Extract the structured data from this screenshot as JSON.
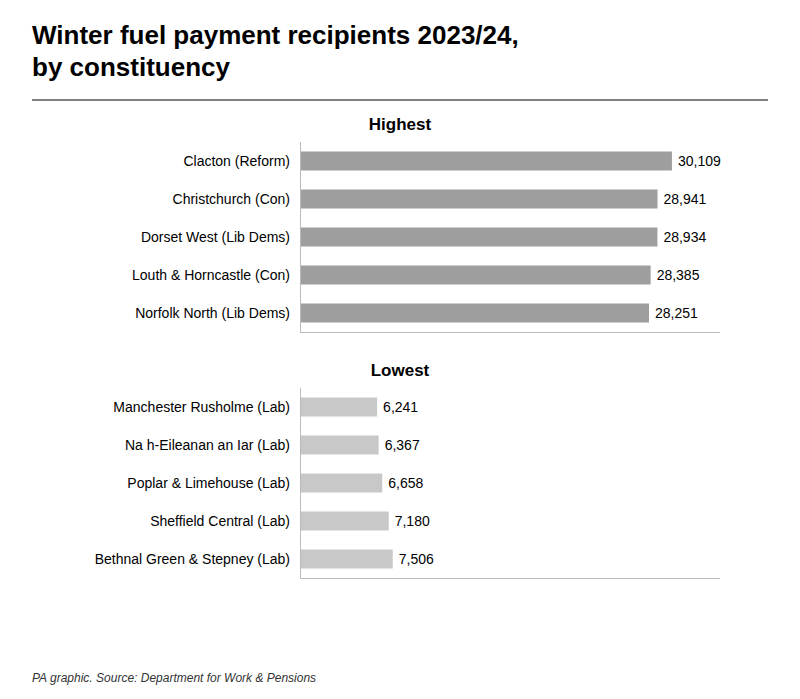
{
  "chart_data": [
    {
      "type": "bar",
      "orientation": "horizontal",
      "title": "Winter fuel payment recipients 2023/24,\nby constituency",
      "subtitle": "Highest",
      "categories": [
        "Clacton (Reform)",
        "Christchurch (Con)",
        "Dorset West (Lib Dems)",
        "Louth & Horncastle (Con)",
        "Norfolk North (Lib Dems)"
      ],
      "values": [
        30109,
        28941,
        28934,
        28385,
        28251
      ],
      "value_labels": [
        "30,109",
        "28,941",
        "28,934",
        "28,385",
        "28,251"
      ],
      "data_labels": true,
      "color": "#9e9e9e",
      "xlim": [
        0,
        34000
      ],
      "tick_labels": false,
      "grid": false
    },
    {
      "type": "bar",
      "orientation": "horizontal",
      "subtitle": "Lowest",
      "categories": [
        "Manchester Rusholme (Lab)",
        "Na h-Eileanan an Iar (Lab)",
        "Poplar & Limehouse (Lab)",
        "Sheffield Central (Lab)",
        "Bethnal Green & Stepney (Lab)"
      ],
      "values": [
        6241,
        6367,
        6658,
        7180,
        7506
      ],
      "value_labels": [
        "6,241",
        "6,367",
        "6,658",
        "7,180",
        "7,506"
      ],
      "data_labels": true,
      "color": "#c8c8c8",
      "xlim": [
        0,
        34000
      ],
      "tick_labels": false,
      "grid": false,
      "annotations": [
        "PA graphic. Source: Department for Work & Pensions"
      ]
    }
  ]
}
